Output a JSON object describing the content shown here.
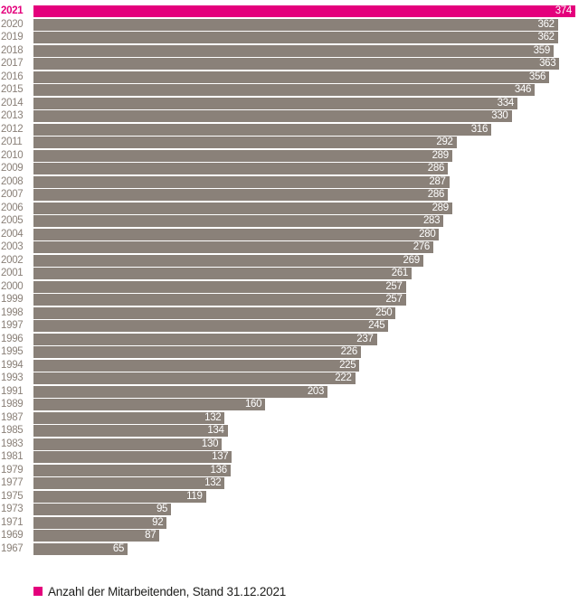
{
  "chart_data": {
    "type": "bar",
    "orientation": "horizontal",
    "categories": [
      "2021",
      "2020",
      "2019",
      "2018",
      "2017",
      "2016",
      "2015",
      "2014",
      "2013",
      "2012",
      "2011",
      "2010",
      "2009",
      "2008",
      "2007",
      "2006",
      "2005",
      "2004",
      "2003",
      "2002",
      "2001",
      "2000",
      "1999",
      "1998",
      "1997",
      "1996",
      "1995",
      "1994",
      "1993",
      "1991",
      "1989",
      "1987",
      "1985",
      "1983",
      "1981",
      "1979",
      "1977",
      "1975",
      "1973",
      "1971",
      "1969",
      "1967"
    ],
    "values": [
      374,
      362,
      362,
      359,
      363,
      356,
      346,
      334,
      330,
      316,
      292,
      289,
      286,
      287,
      286,
      289,
      283,
      280,
      276,
      269,
      261,
      257,
      257,
      250,
      245,
      237,
      226,
      225,
      222,
      203,
      160,
      132,
      134,
      130,
      137,
      136,
      132,
      119,
      95,
      92,
      87,
      65
    ],
    "highlight_category": "2021",
    "xlim": [
      0,
      374
    ],
    "grid": false,
    "value_labels": "inside-end",
    "legend_position": "bottom",
    "legend_label": "Anzahl der Mitarbeitenden, Stand 31.12.2021",
    "colors": {
      "highlight": "#E4007C",
      "bar": "#8A8179",
      "category_label": "#8A8078",
      "value_label": "#FFFFFF",
      "legend_text": "#1D1D1B"
    }
  }
}
